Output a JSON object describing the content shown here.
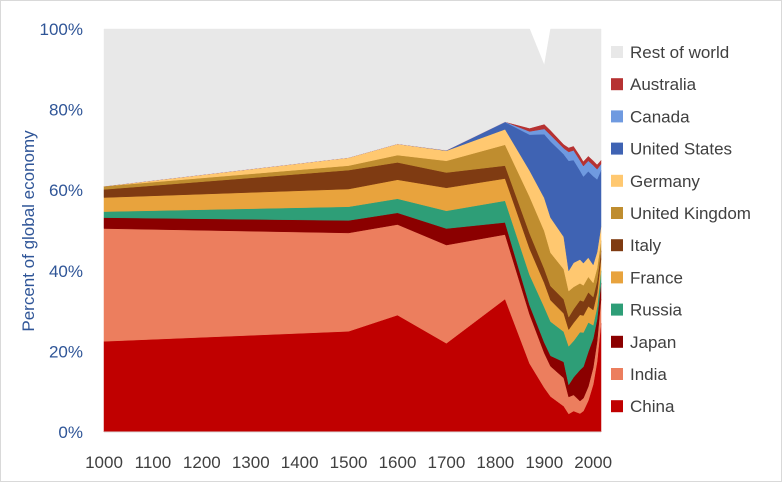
{
  "chart_data": {
    "type": "area",
    "stacked": true,
    "ylabel": "Percent of global economy",
    "xlim": [
      1000,
      2016
    ],
    "ylim": [
      0,
      100
    ],
    "yticks": [
      "0%",
      "20%",
      "40%",
      "60%",
      "80%",
      "100%"
    ],
    "xticks": [
      "1000",
      "1100",
      "1200",
      "1300",
      "1400",
      "1500",
      "1600",
      "1700",
      "1800",
      "1900",
      "2000"
    ],
    "xtick_values": [
      1000,
      1100,
      1200,
      1300,
      1400,
      1500,
      1600,
      1700,
      1800,
      1900,
      2000
    ],
    "legend_position": "right",
    "x": [
      1000,
      1500,
      1600,
      1700,
      1820,
      1870,
      1900,
      1913,
      1940,
      1950,
      1960,
      1973,
      1980,
      1990,
      2000,
      2008,
      2016
    ],
    "series": [
      {
        "name": "China",
        "color": "#c00000",
        "values": [
          22.5,
          25.0,
          29.0,
          22.0,
          33.0,
          17.0,
          11.0,
          8.8,
          6.4,
          4.5,
          5.2,
          4.6,
          5.2,
          7.8,
          11.8,
          17.5,
          27.0
        ]
      },
      {
        "name": "India",
        "color": "#ec7e5e",
        "values": [
          28.0,
          24.4,
          22.5,
          24.4,
          16.0,
          12.2,
          8.6,
          7.5,
          7.0,
          4.2,
          4.0,
          3.1,
          3.2,
          3.5,
          4.2,
          5.0,
          6.0
        ]
      },
      {
        "name": "Japan",
        "color": "#8b0000",
        "values": [
          2.7,
          3.1,
          2.9,
          4.1,
          3.0,
          2.3,
          2.6,
          2.6,
          4.0,
          3.0,
          4.4,
          7.7,
          7.8,
          8.6,
          7.2,
          5.5,
          4.0
        ]
      },
      {
        "name": "Russia",
        "color": "#2e9e77",
        "values": [
          1.5,
          3.4,
          3.5,
          4.4,
          5.4,
          7.5,
          8.8,
          8.5,
          7.5,
          9.6,
          9.0,
          9.4,
          8.5,
          7.3,
          3.3,
          3.0,
          3.0
        ]
      },
      {
        "name": "France",
        "color": "#e8a33d",
        "values": [
          3.5,
          4.4,
          4.7,
          5.7,
          5.5,
          6.5,
          6.0,
          5.3,
          4.5,
          4.1,
          4.5,
          4.3,
          4.2,
          4.0,
          3.8,
          3.5,
          3.0
        ]
      },
      {
        "name": "Italy",
        "color": "#7f3b12",
        "values": [
          2.0,
          4.7,
          4.3,
          3.8,
          3.2,
          3.8,
          3.5,
          3.5,
          3.5,
          3.1,
          3.4,
          3.6,
          3.5,
          3.5,
          3.2,
          3.0,
          2.0
        ]
      },
      {
        "name": "United Kingdom",
        "color": "#bf8d2f",
        "values": [
          0.8,
          1.1,
          1.8,
          2.9,
          5.2,
          9.1,
          9.4,
          8.3,
          7.5,
          6.5,
          5.5,
          4.2,
          4.0,
          3.8,
          3.5,
          3.2,
          2.5
        ]
      },
      {
        "name": "Germany",
        "color": "#ffc870",
        "values": [
          0.0,
          2.0,
          2.8,
          2.5,
          3.8,
          6.5,
          8.2,
          8.7,
          8.0,
          5.0,
          6.0,
          5.9,
          5.5,
          4.8,
          4.5,
          4.0,
          3.5
        ]
      },
      {
        "name": "United States",
        "color": "#3f63b3",
        "values": [
          0.0,
          0.0,
          0.0,
          0.1,
          1.8,
          8.9,
          15.8,
          18.9,
          20.5,
          27.3,
          25.5,
          22.1,
          21.5,
          21.4,
          22.0,
          18.0,
          14.0
        ]
      },
      {
        "name": "Canada",
        "color": "#6f9ae0",
        "values": [
          0.0,
          0.0,
          0.0,
          0.0,
          0.1,
          0.8,
          1.3,
          1.6,
          1.5,
          2.2,
          2.4,
          2.5,
          2.6,
          2.6,
          2.7,
          2.5,
          1.5
        ]
      },
      {
        "name": "Australia",
        "color": "#b63232",
        "values": [
          0.0,
          0.0,
          0.0,
          0.0,
          0.0,
          0.8,
          1.2,
          1.2,
          1.0,
          1.1,
          1.1,
          1.2,
          1.2,
          1.2,
          1.2,
          1.2,
          1.0
        ]
      },
      {
        "name": "Rest of world",
        "color": "#e8e8e8",
        "values": [
          39.0,
          31.9,
          28.5,
          30.1,
          23.0,
          24.6,
          14.6,
          25.1,
          28.6,
          29.4,
          29.0,
          31.4,
          32.8,
          31.5,
          32.6,
          33.6,
          32.5
        ]
      }
    ]
  }
}
